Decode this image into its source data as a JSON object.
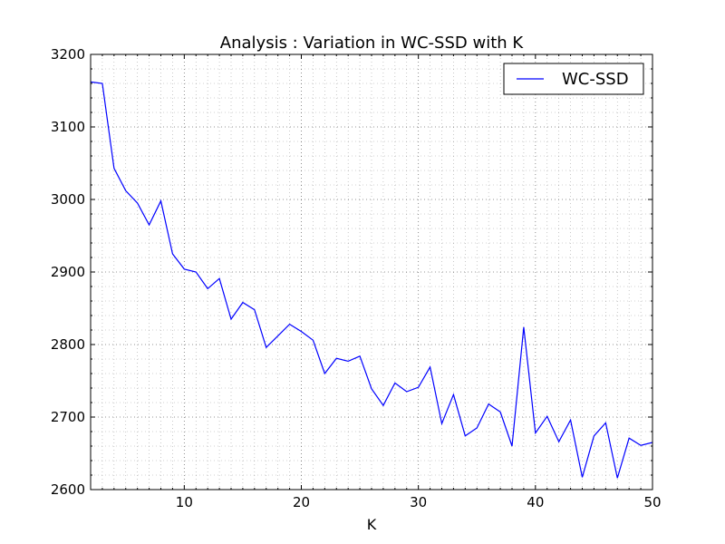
{
  "chart_data": {
    "type": "line",
    "title": "Analysis : Variation in WC-SSD with K",
    "xlabel": "K",
    "ylabel": "",
    "xlim": [
      2,
      50
    ],
    "ylim": [
      2600,
      3200
    ],
    "x_ticks": [
      10,
      20,
      30,
      40,
      50
    ],
    "y_ticks": [
      2600,
      2700,
      2800,
      2900,
      3000,
      3100,
      3200
    ],
    "grid": true,
    "legend_position": "top-right",
    "series": [
      {
        "name": "WC-SSD",
        "color": "#0000ff",
        "x": [
          2,
          3,
          4,
          5,
          6,
          7,
          8,
          9,
          10,
          11,
          12,
          13,
          14,
          15,
          16,
          17,
          18,
          19,
          20,
          21,
          22,
          23,
          24,
          25,
          26,
          27,
          28,
          29,
          30,
          31,
          32,
          33,
          34,
          35,
          36,
          37,
          38,
          39,
          40,
          41,
          42,
          43,
          44,
          45,
          46,
          47,
          48,
          49,
          50
        ],
        "values": [
          3162,
          3160,
          3043,
          3012,
          2995,
          2965,
          2998,
          2925,
          2904,
          2900,
          2877,
          2891,
          2835,
          2858,
          2848,
          2796,
          2812,
          2828,
          2818,
          2806,
          2760,
          2781,
          2777,
          2784,
          2739,
          2716,
          2747,
          2735,
          2741,
          2769,
          2691,
          2731,
          2674,
          2685,
          2718,
          2707,
          2660,
          2824,
          2678,
          2701,
          2666,
          2696,
          2617,
          2674,
          2692,
          2616,
          2671,
          2661,
          2665
        ]
      }
    ]
  }
}
